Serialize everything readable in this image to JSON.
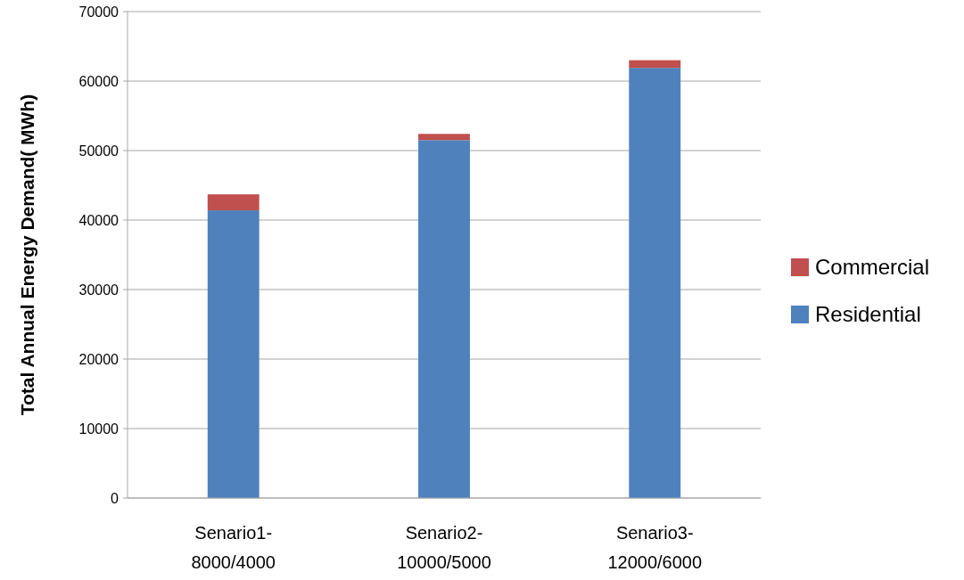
{
  "chart_data": {
    "type": "bar",
    "stacked": true,
    "ylabel": "Total Annual Energy Demand( MWh)",
    "categories": [
      "Senario1-\n8000/4000",
      "Senario2-\n10000/5000",
      "Senario3-\n12000/6000"
    ],
    "series": [
      {
        "name": "Residential",
        "color": "#4f81bd",
        "values": [
          41400,
          51500,
          61900
        ]
      },
      {
        "name": "Commercial",
        "color": "#c0504d",
        "values": [
          2300,
          900,
          1100
        ]
      }
    ],
    "ylim": [
      0,
      70000
    ],
    "yticks": [
      0,
      10000,
      20000,
      30000,
      40000,
      50000,
      60000,
      70000
    ],
    "grid": "y",
    "legend": "right"
  }
}
